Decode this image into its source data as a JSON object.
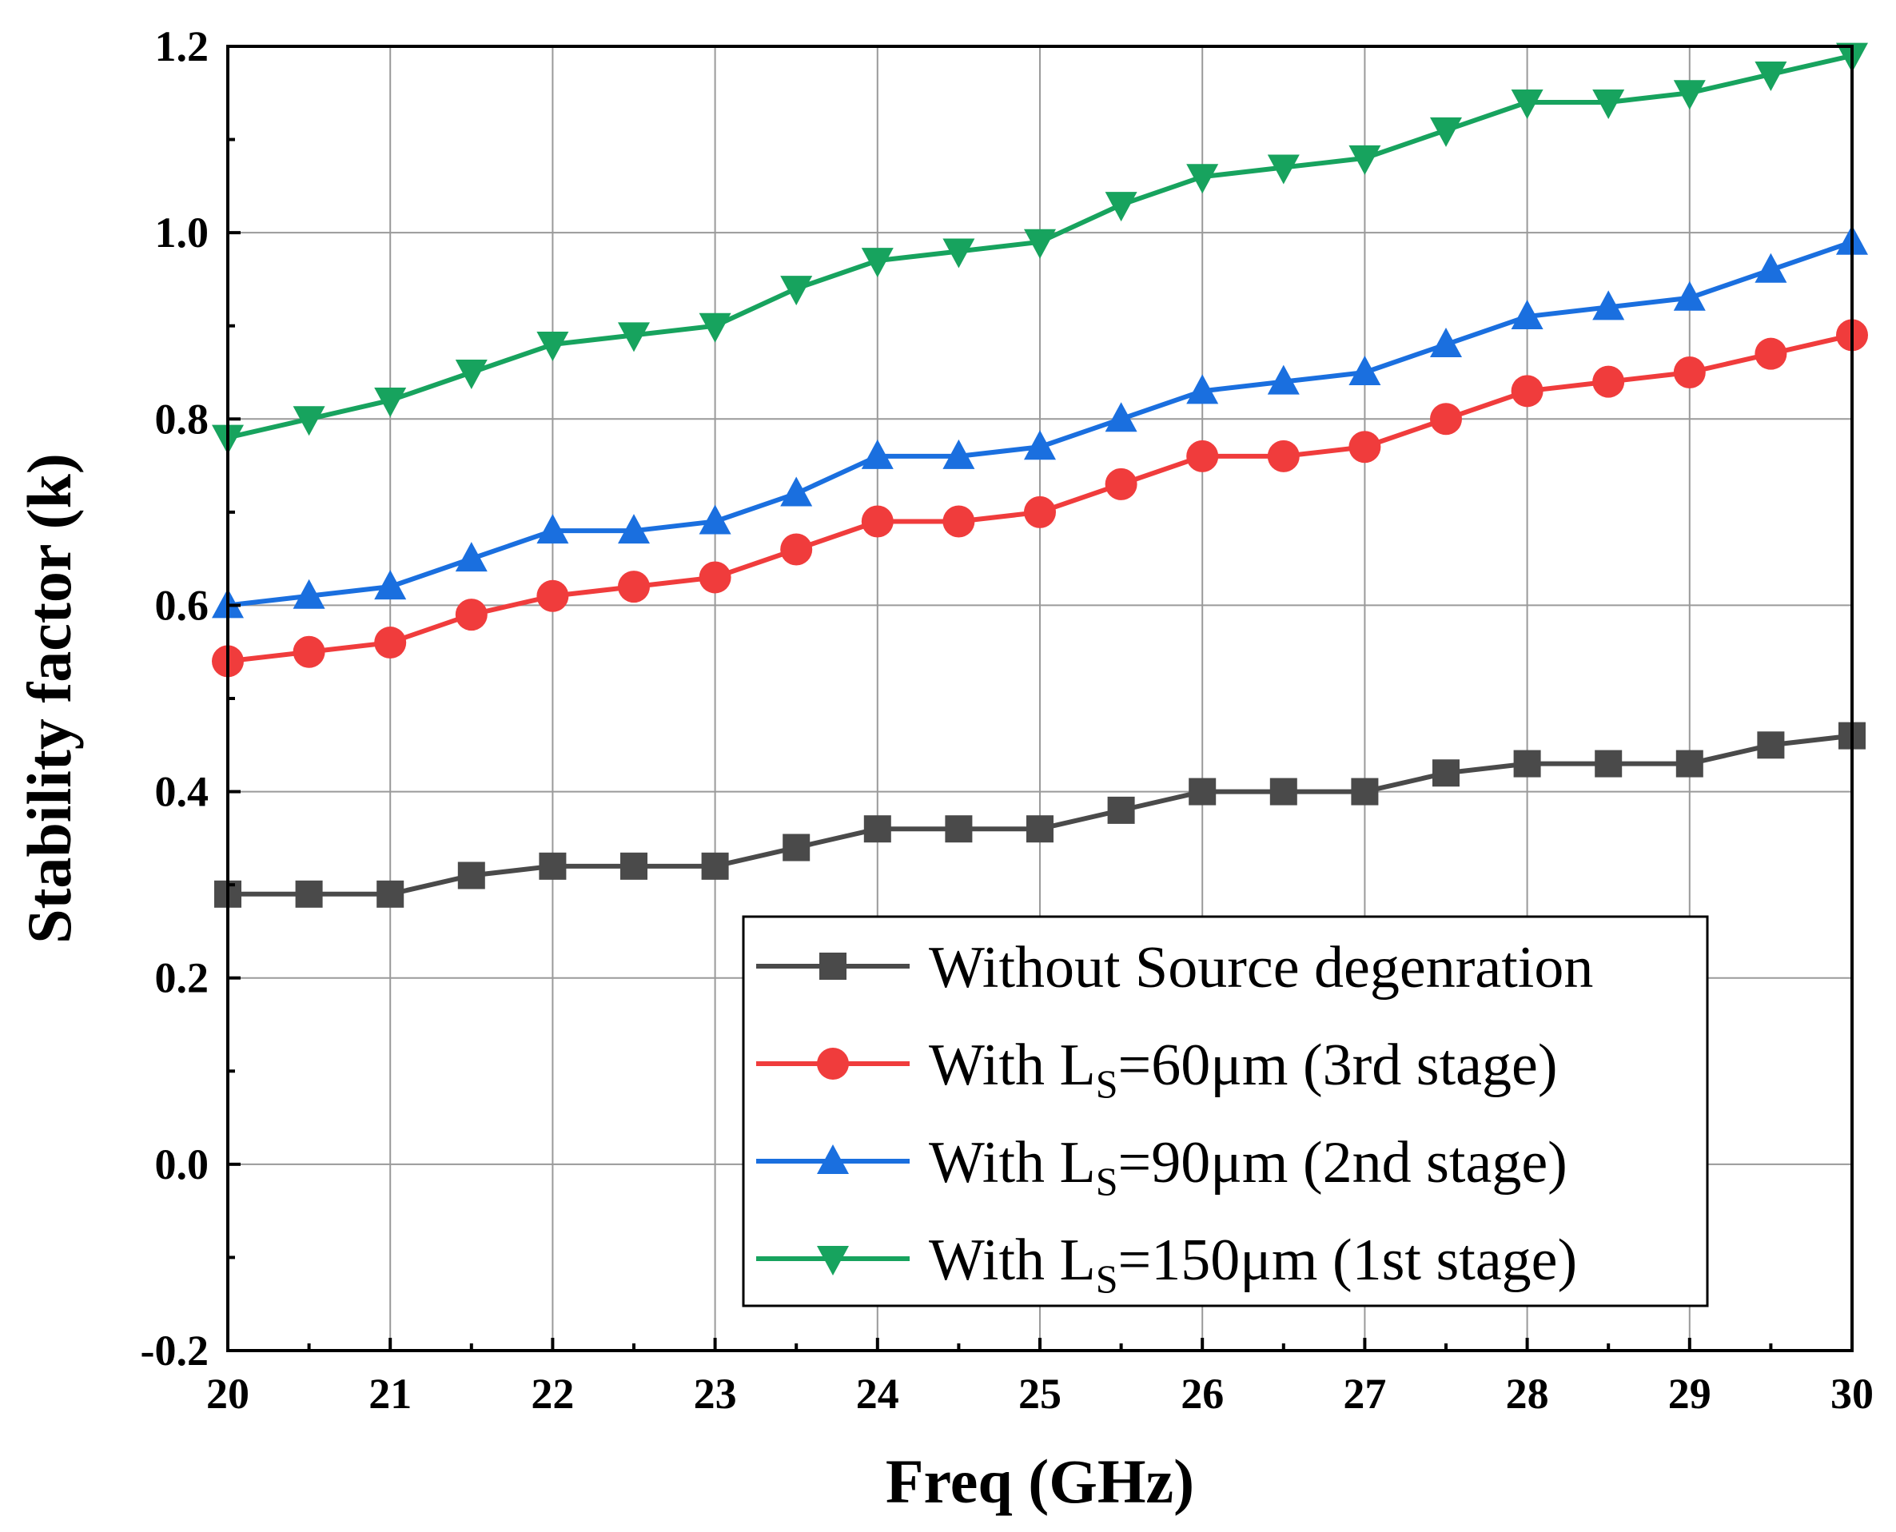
{
  "chart_data": {
    "type": "line",
    "title": "",
    "xlabel": "Freq (GHz)",
    "ylabel": "Stability factor (k)",
    "xlim": [
      20,
      30
    ],
    "ylim": [
      -0.2,
      1.2
    ],
    "grid": true,
    "legend_position": "bottom-right",
    "x_ticks": [
      "20",
      "21",
      "22",
      "23",
      "24",
      "25",
      "26",
      "27",
      "28",
      "29",
      "30"
    ],
    "y_ticks": [
      "-0.2",
      "0.0",
      "0.2",
      "0.4",
      "0.6",
      "0.8",
      "1.0",
      "1.2"
    ],
    "x": [
      20,
      20.5,
      21,
      21.5,
      22,
      22.5,
      23,
      23.5,
      24,
      24.5,
      25,
      25.5,
      26,
      26.5,
      27,
      27.5,
      28,
      28.5,
      29,
      29.5,
      30
    ],
    "series": [
      {
        "name": "Without Source degenration",
        "legend_main": "Without Source degenration",
        "legend_sub": "",
        "legend_rest": "",
        "marker": "square",
        "color": "#4a4a4a",
        "values": [
          0.29,
          0.29,
          0.29,
          0.31,
          0.32,
          0.32,
          0.32,
          0.34,
          0.36,
          0.36,
          0.36,
          0.38,
          0.4,
          0.4,
          0.4,
          0.42,
          0.43,
          0.43,
          0.43,
          0.45,
          0.46
        ]
      },
      {
        "name": "With LS=60μm (3rd stage)",
        "legend_main": "With L",
        "legend_sub": "S",
        "legend_rest": "=60μm (3rd stage)",
        "marker": "circle",
        "color": "#f03c3c",
        "values": [
          0.54,
          0.55,
          0.56,
          0.59,
          0.61,
          0.62,
          0.63,
          0.66,
          0.69,
          0.69,
          0.7,
          0.73,
          0.76,
          0.76,
          0.77,
          0.8,
          0.83,
          0.84,
          0.85,
          0.87,
          0.89
        ]
      },
      {
        "name": "With LS=90μm (2nd stage)",
        "legend_main": "With L",
        "legend_sub": "S",
        "legend_rest": "=90μm (2nd stage)",
        "marker": "triangle-up",
        "color": "#1a6fdf",
        "values": [
          0.6,
          0.61,
          0.62,
          0.65,
          0.68,
          0.68,
          0.69,
          0.72,
          0.76,
          0.76,
          0.77,
          0.8,
          0.83,
          0.84,
          0.85,
          0.88,
          0.91,
          0.92,
          0.93,
          0.96,
          0.99
        ]
      },
      {
        "name": "With LS=150μm (1st stage)",
        "legend_main": "With L",
        "legend_sub": "S",
        "legend_rest": "=150μm (1st stage)",
        "marker": "triangle-down",
        "color": "#17a35e",
        "values": [
          0.78,
          0.8,
          0.82,
          0.85,
          0.88,
          0.89,
          0.9,
          0.94,
          0.97,
          0.98,
          0.99,
          1.03,
          1.06,
          1.07,
          1.08,
          1.11,
          1.14,
          1.14,
          1.15,
          1.17,
          1.19
        ]
      }
    ]
  }
}
